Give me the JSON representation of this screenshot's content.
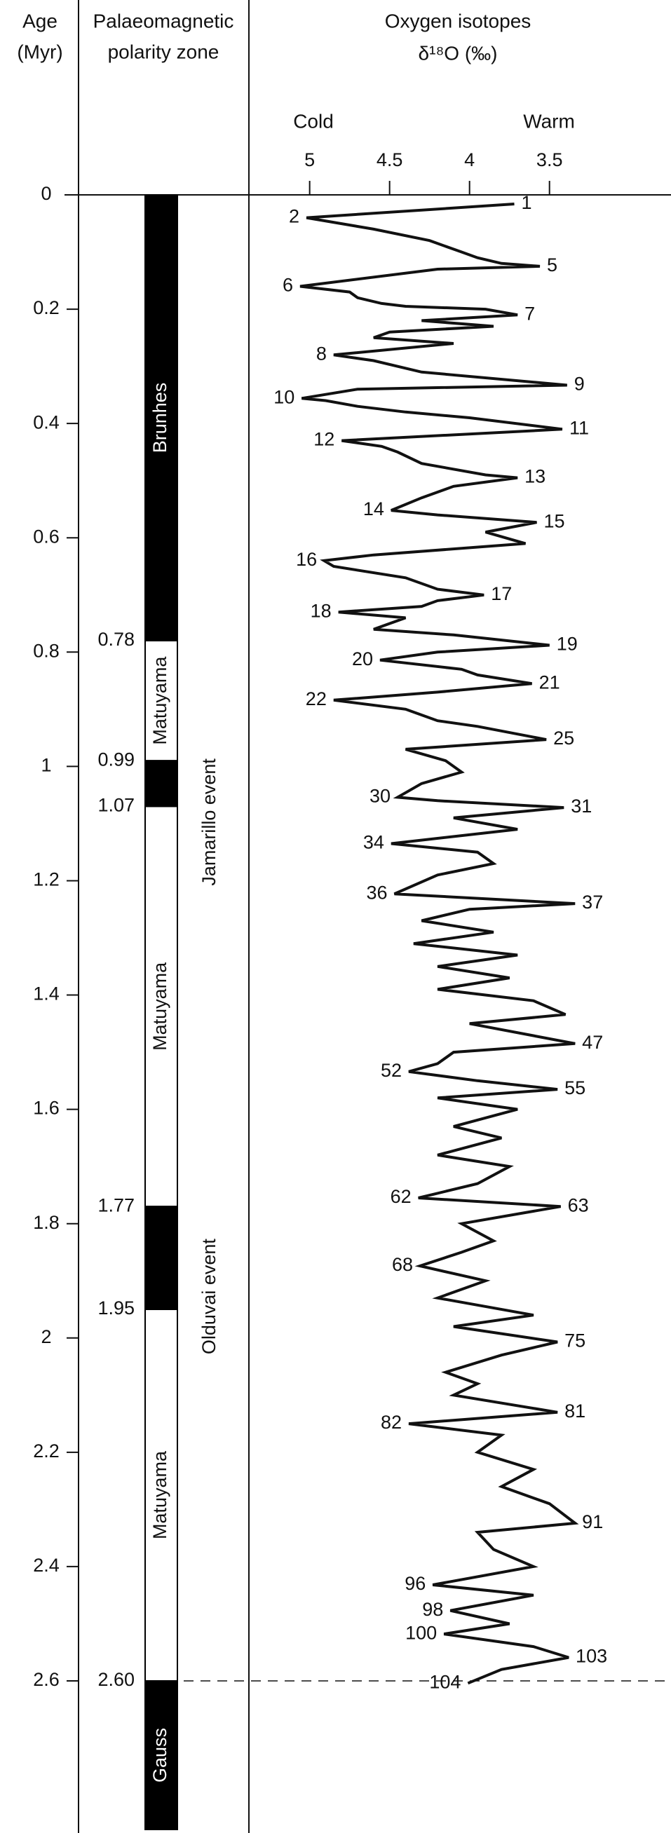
{
  "chart_data": {
    "type": "line",
    "title": "Oxygen isotopes",
    "x_axis_label": "δ¹⁸O (‰)",
    "cold_label": "Cold",
    "warm_label": "Warm",
    "age_header": [
      "Age",
      "(Myr)"
    ],
    "polarity_header": [
      "Palaeomagnetic",
      "polarity zone"
    ],
    "color": "#111111",
    "xlim": [
      5.38,
      2.74
    ],
    "xticks": [
      5,
      4.5,
      4,
      3.5
    ],
    "ylim": [
      0,
      2.86
    ],
    "yticks": [
      0,
      0.2,
      0.4,
      0.6,
      0.8,
      1,
      1.2,
      1.4,
      1.6,
      1.8,
      2,
      2.2,
      2.4,
      2.6
    ],
    "x": [
      0.016,
      0.04,
      0.06,
      0.08,
      0.09,
      0.1,
      0.11,
      0.12,
      0.125,
      0.13,
      0.16,
      0.17,
      0.18,
      0.19,
      0.195,
      0.2,
      0.21,
      0.22,
      0.23,
      0.24,
      0.25,
      0.26,
      0.28,
      0.29,
      0.31,
      0.333,
      0.34,
      0.356,
      0.36,
      0.37,
      0.38,
      0.39,
      0.41,
      0.43,
      0.44,
      0.45,
      0.47,
      0.49,
      0.495,
      0.51,
      0.53,
      0.552,
      0.56,
      0.573,
      0.59,
      0.61,
      0.63,
      0.64,
      0.65,
      0.67,
      0.69,
      0.7,
      0.71,
      0.72,
      0.73,
      0.74,
      0.76,
      0.77,
      0.788,
      0.8,
      0.814,
      0.83,
      0.84,
      0.855,
      0.87,
      0.884,
      0.9,
      0.92,
      0.93,
      0.953,
      0.97,
      0.99,
      1.01,
      1.03,
      1.054,
      1.06,
      1.072,
      1.09,
      1.11,
      1.135,
      1.15,
      1.17,
      1.19,
      1.223,
      1.24,
      1.25,
      1.27,
      1.29,
      1.31,
      1.33,
      1.35,
      1.37,
      1.39,
      1.41,
      1.434,
      1.45,
      1.485,
      1.5,
      1.52,
      1.534,
      1.55,
      1.565,
      1.58,
      1.6,
      1.63,
      1.65,
      1.68,
      1.7,
      1.73,
      1.755,
      1.77,
      1.8,
      1.83,
      1.85,
      1.874,
      1.9,
      1.93,
      1.96,
      1.98,
      2.007,
      2.03,
      2.06,
      2.08,
      2.1,
      2.13,
      2.15,
      2.17,
      2.2,
      2.23,
      2.26,
      2.29,
      2.324,
      2.34,
      2.37,
      2.4,
      2.432,
      2.45,
      2.477,
      2.5,
      2.518,
      2.54,
      2.559,
      2.58,
      2.604
    ],
    "values": [
      3.72,
      5.02,
      4.6,
      4.25,
      4.15,
      4.05,
      3.95,
      3.8,
      3.56,
      4.2,
      5.06,
      4.75,
      4.7,
      4.55,
      4.4,
      3.9,
      3.7,
      4.3,
      3.85,
      4.5,
      4.6,
      4.1,
      4.85,
      4.6,
      4.3,
      3.39,
      4.7,
      5.05,
      4.9,
      4.7,
      4.4,
      4.0,
      3.42,
      4.8,
      4.55,
      4.45,
      4.3,
      3.9,
      3.7,
      4.1,
      4.3,
      4.49,
      4.2,
      3.58,
      3.9,
      3.65,
      4.6,
      4.91,
      4.85,
      4.4,
      4.2,
      3.91,
      4.2,
      4.3,
      4.82,
      4.4,
      4.6,
      4.1,
      3.5,
      4.2,
      4.56,
      4.05,
      3.95,
      3.61,
      4.2,
      4.85,
      4.4,
      4.2,
      3.95,
      3.52,
      4.4,
      4.15,
      4.05,
      4.3,
      4.45,
      4.2,
      3.41,
      4.1,
      3.7,
      4.49,
      3.95,
      3.85,
      4.2,
      4.47,
      3.34,
      4.0,
      4.3,
      3.85,
      4.35,
      3.7,
      4.2,
      3.75,
      4.2,
      3.6,
      3.4,
      4.0,
      3.34,
      4.1,
      4.2,
      4.38,
      3.95,
      3.45,
      4.2,
      3.7,
      4.1,
      3.8,
      4.2,
      3.75,
      3.95,
      4.32,
      3.43,
      4.05,
      3.85,
      4.05,
      4.31,
      3.9,
      4.2,
      3.6,
      4.1,
      3.45,
      3.8,
      4.15,
      3.95,
      4.1,
      3.45,
      4.38,
      3.8,
      3.95,
      3.6,
      3.8,
      3.5,
      3.34,
      3.95,
      3.85,
      3.6,
      4.23,
      3.6,
      4.12,
      3.75,
      4.16,
      3.6,
      3.38,
      3.8,
      4.01
    ],
    "point_labels": [
      "1",
      "2",
      null,
      null,
      null,
      null,
      null,
      null,
      "5",
      null,
      "6",
      null,
      null,
      null,
      null,
      null,
      "7",
      null,
      null,
      null,
      null,
      null,
      "8",
      null,
      null,
      "9",
      null,
      "10",
      null,
      null,
      null,
      null,
      "11",
      "12",
      null,
      null,
      null,
      null,
      "13",
      null,
      null,
      "14",
      null,
      "15",
      null,
      null,
      null,
      "16",
      null,
      null,
      null,
      "17",
      null,
      null,
      "18",
      null,
      null,
      null,
      "19",
      null,
      "20",
      null,
      null,
      "21",
      null,
      "22",
      null,
      null,
      null,
      "25",
      null,
      null,
      null,
      null,
      "30",
      null,
      "31",
      null,
      null,
      "34",
      null,
      null,
      null,
      "36",
      "37",
      null,
      null,
      null,
      null,
      null,
      null,
      null,
      null,
      null,
      null,
      null,
      "47",
      null,
      null,
      "52",
      null,
      "55",
      null,
      null,
      null,
      null,
      null,
      null,
      null,
      "62",
      "63",
      null,
      null,
      null,
      "68",
      null,
      null,
      null,
      null,
      "75",
      null,
      null,
      null,
      null,
      "81",
      "82",
      null,
      null,
      null,
      null,
      null,
      "91",
      null,
      null,
      null,
      "96",
      null,
      "98",
      null,
      "100",
      null,
      "103",
      null,
      "104"
    ],
    "polarity": {
      "boundaries": [
        0.78,
        0.99,
        1.07,
        1.77,
        1.95,
        {
          "value": 2.6,
          "label": "2.60"
        }
      ],
      "zones": [
        {
          "label": "Brunhes",
          "color": "#000000"
        },
        {
          "label": "Matuyama",
          "color": "#ffffff"
        },
        {
          "label": null,
          "color": "#000000",
          "event": "Jamarillo event"
        },
        {
          "label": "Matuyama",
          "color": "#ffffff"
        },
        {
          "label": null,
          "color": "#000000",
          "event": "Olduvai event"
        },
        {
          "label": "Matuyama",
          "color": "#ffffff"
        },
        {
          "label": "Gauss",
          "color": "#000000"
        }
      ]
    }
  }
}
